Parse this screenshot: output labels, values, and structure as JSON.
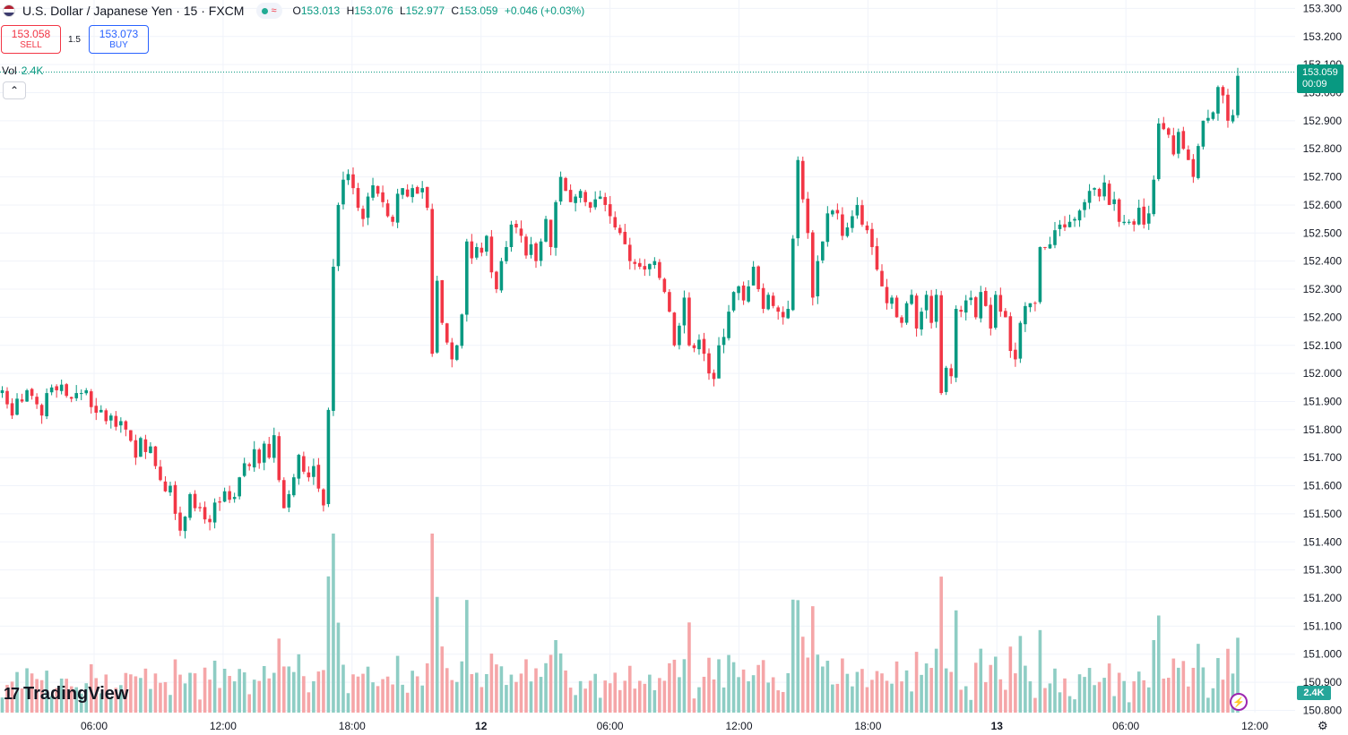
{
  "header": {
    "title": "U.S. Dollar / Japanese Yen · 15 · FXCM",
    "ohlc": {
      "o_label": "O",
      "o": "153.013",
      "h_label": "H",
      "h": "153.076",
      "l_label": "L",
      "l": "152.977",
      "c_label": "C",
      "c": "153.059",
      "change": "+0.046 (+0.03%)"
    }
  },
  "trade": {
    "sell_price": "153.058",
    "sell_label": "SELL",
    "spread": "1.5",
    "buy_price": "153.073",
    "buy_label": "BUY"
  },
  "volume": {
    "label": "Vol",
    "value": "2.4K"
  },
  "last_price": {
    "price": "153.059",
    "countdown": "00:09"
  },
  "logo_text": "TradingView",
  "colors": {
    "up": "#089981",
    "down": "#f23645",
    "vol_up": "#8ecdc4",
    "vol_down": "#f5a6a8",
    "grid": "#f0f3fa",
    "axis_text": "#131722"
  },
  "icons": [
    "flag-icon",
    "chevron-up-icon",
    "lightning-icon",
    "gear-icon",
    "tradingview-logo-icon"
  ],
  "chart_data": {
    "type": "candlestick",
    "title": "U.S. Dollar / Japanese Yen · 15 · FXCM",
    "ylim": [
      150.76,
      153.33
    ],
    "y_ticks": [
      "153.300",
      "153.200",
      "153.100",
      "153.000",
      "152.900",
      "152.800",
      "152.700",
      "152.600",
      "152.500",
      "152.400",
      "152.300",
      "152.200",
      "152.100",
      "152.000",
      "151.900",
      "151.800",
      "151.700",
      "151.600",
      "151.500",
      "151.400",
      "151.300",
      "151.200",
      "151.100",
      "151.000",
      "150.900",
      "150.800"
    ],
    "x_ticks": [
      "06:00",
      "12:00",
      "18:00",
      "12",
      "06:00",
      "12:00",
      "18:00",
      "13",
      "06:00",
      "12:00"
    ],
    "close": [
      151.94,
      151.89,
      151.85,
      151.91,
      151.9,
      151.94,
      151.92,
      151.89,
      151.85,
      151.93,
      151.95,
      151.94,
      151.96,
      151.92,
      151.91,
      151.93,
      151.93,
      151.94,
      151.88,
      151.86,
      151.87,
      151.83,
      151.85,
      151.81,
      151.83,
      151.8,
      151.76,
      151.7,
      151.77,
      151.72,
      151.74,
      151.67,
      151.62,
      151.58,
      151.6,
      151.5,
      151.44,
      151.49,
      151.57,
      151.52,
      151.52,
      151.48,
      151.47,
      151.54,
      151.54,
      151.58,
      151.55,
      151.56,
      151.63,
      151.68,
      151.67,
      151.73,
      151.68,
      151.75,
      151.7,
      151.78,
      151.62,
      151.52,
      151.57,
      151.63,
      151.71,
      151.65,
      151.63,
      151.67,
      151.59,
      151.53,
      151.87,
      152.38,
      152.6,
      152.69,
      152.71,
      152.66,
      152.59,
      152.55,
      152.63,
      152.67,
      152.64,
      152.61,
      152.56,
      152.54,
      152.64,
      152.66,
      152.63,
      152.66,
      152.64,
      152.66,
      152.59,
      152.07,
      152.33,
      152.18,
      152.11,
      152.05,
      152.1,
      152.21,
      152.47,
      152.41,
      152.45,
      152.43,
      152.49,
      152.36,
      152.3,
      152.4,
      152.45,
      152.53,
      152.52,
      152.49,
      152.42,
      152.46,
      152.4,
      152.47,
      152.55,
      152.45,
      152.61,
      152.7,
      152.65,
      152.61,
      152.63,
      152.65,
      152.61,
      152.59,
      152.62,
      152.63,
      152.6,
      152.56,
      152.52,
      152.5,
      152.46,
      152.4,
      152.39,
      152.38,
      152.37,
      152.39,
      152.4,
      152.34,
      152.29,
      152.22,
      152.1,
      152.17,
      152.27,
      152.1,
      152.09,
      152.12,
      152.07,
      152.0,
      151.98,
      152.1,
      152.13,
      152.22,
      152.29,
      152.31,
      152.26,
      152.31,
      152.38,
      152.3,
      152.23,
      152.28,
      152.24,
      152.22,
      152.2,
      152.23,
      152.48,
      152.76,
      152.62,
      152.5,
      152.27,
      152.4,
      152.47,
      152.57,
      152.58,
      152.57,
      152.49,
      152.52,
      152.56,
      152.6,
      152.53,
      152.51,
      152.45,
      152.37,
      152.31,
      152.25,
      152.27,
      152.2,
      152.18,
      152.25,
      152.28,
      152.16,
      152.22,
      152.28,
      152.18,
      152.28,
      151.93,
      152.02,
      151.99,
      152.23,
      152.22,
      152.26,
      152.27,
      152.2,
      152.29,
      152.24,
      152.16,
      152.28,
      152.22,
      152.2,
      152.08,
      152.05,
      152.18,
      152.24,
      152.25,
      152.25,
      152.45,
      152.45,
      152.46,
      152.51,
      152.53,
      152.52,
      152.54,
      152.55,
      152.58,
      152.61,
      152.65,
      152.66,
      152.63,
      152.68,
      152.6,
      152.62,
      152.54,
      152.54,
      152.54,
      152.53,
      152.59,
      152.53,
      152.57,
      152.69,
      152.89,
      152.87,
      152.85,
      152.78,
      152.86,
      152.8,
      152.76,
      152.7,
      152.81,
      152.9,
      152.91,
      152.93,
      153.02,
      152.99,
      152.9,
      152.92,
      153.06
    ]
  }
}
